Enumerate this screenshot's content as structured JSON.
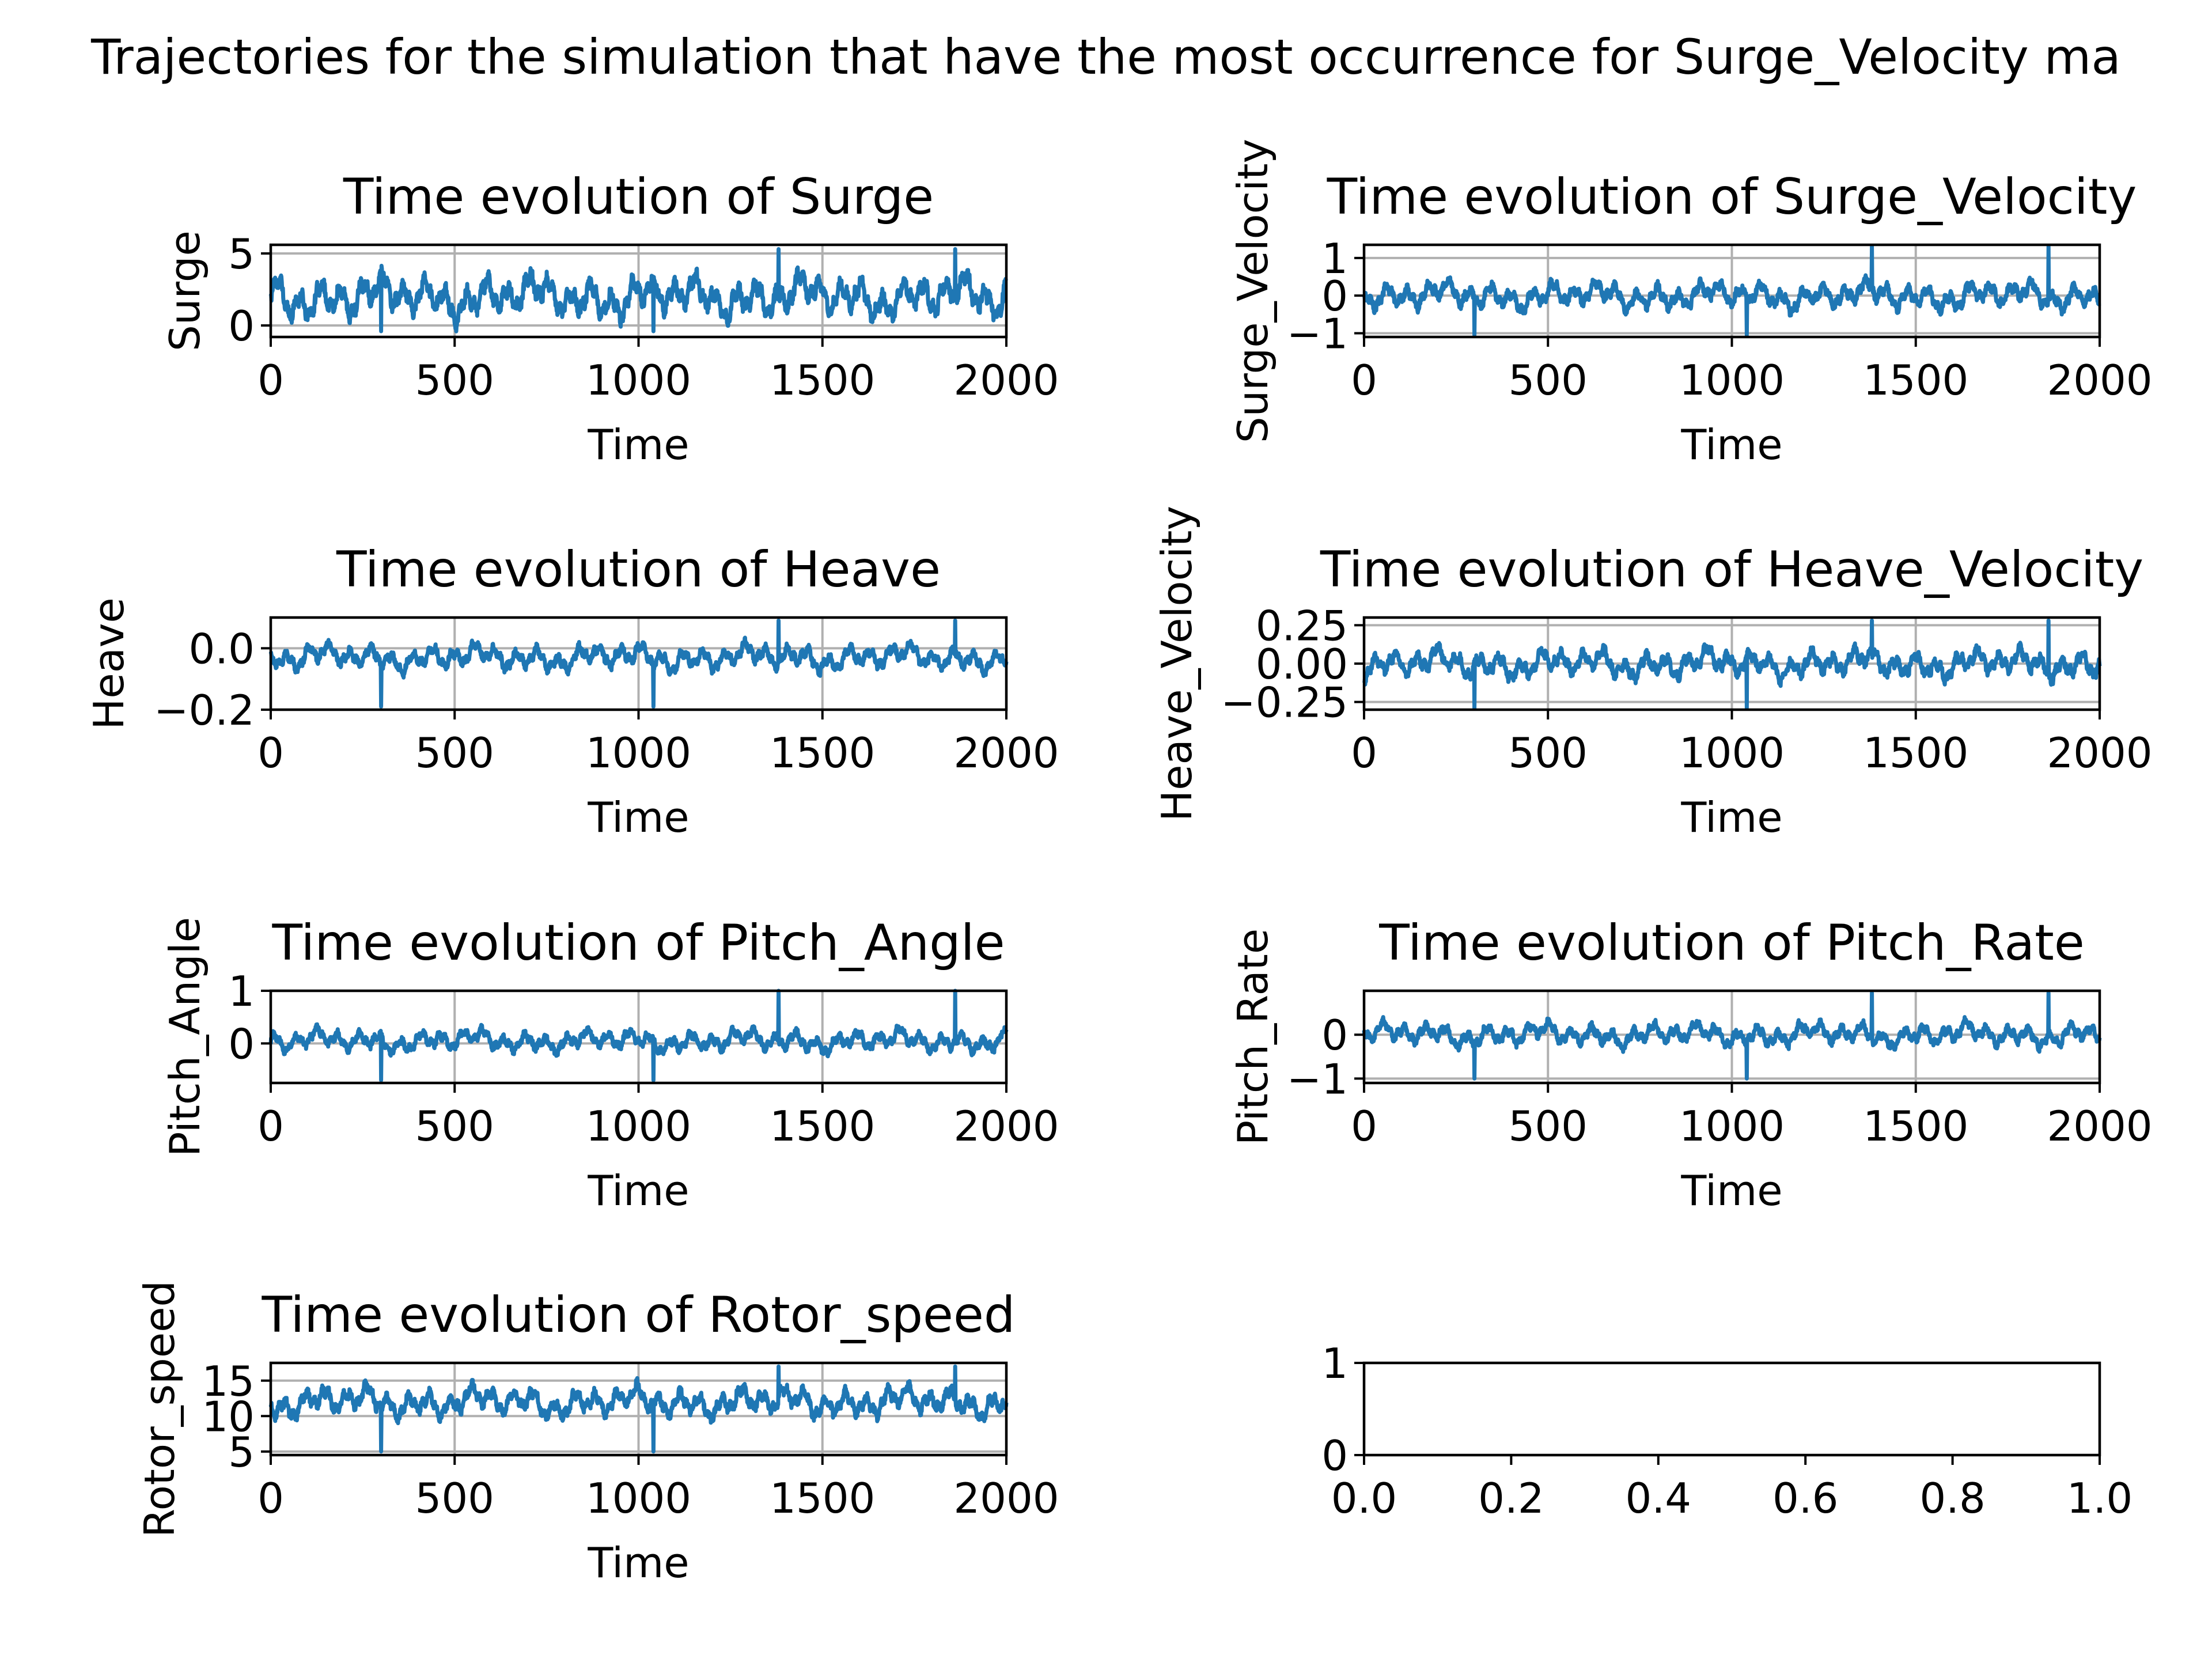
{
  "chart_data": [
    {
      "type": "line",
      "suptitle": "Trajectories for the simulation that have the most occurrence for Surge_Velocity ma",
      "title": "Time evolution of Surge",
      "xlabel": "Time",
      "ylabel": "Surge",
      "xlim": [
        0,
        2000
      ],
      "ylim": [
        -0.8,
        5.6
      ],
      "xticks": [
        "0",
        "500",
        "1000",
        "1500",
        "2000"
      ],
      "yticks": [
        {
          "v": 0,
          "label": "0"
        },
        {
          "v": 5,
          "label": "5"
        }
      ],
      "grid": true,
      "series_color": "#1f77b4",
      "signal": {
        "mean": 2.0,
        "amplitude": 1.4,
        "extremes": [
          -0.4,
          5.3
        ],
        "points": 2000
      }
    },
    {
      "type": "line",
      "title": "Time evolution of Surge_Velocity",
      "xlabel": "Time",
      "ylabel": "Surge_Velocity",
      "xlim": [
        0,
        2000
      ],
      "ylim": [
        -1.1,
        1.35
      ],
      "xticks": [
        "0",
        "500",
        "1000",
        "1500",
        "2000"
      ],
      "yticks": [
        {
          "v": -1,
          "label": "−1"
        },
        {
          "v": 0,
          "label": "0"
        },
        {
          "v": 1,
          "label": "1"
        }
      ],
      "grid": true,
      "series_color": "#1f77b4",
      "signal": {
        "mean": 0.0,
        "amplitude": 0.35,
        "extremes": [
          -1.05,
          1.3
        ],
        "points": 2000
      }
    },
    {
      "type": "line",
      "title": "Time evolution of Heave",
      "xlabel": "Time",
      "ylabel": "Heave",
      "xlim": [
        0,
        2000
      ],
      "ylim": [
        -0.2,
        0.1
      ],
      "xticks": [
        "0",
        "500",
        "1000",
        "1500",
        "2000"
      ],
      "yticks": [
        {
          "v": -0.2,
          "label": "−0.2"
        },
        {
          "v": 0.0,
          "label": "0.0"
        }
      ],
      "grid": true,
      "series_color": "#1f77b4",
      "signal": {
        "mean": -0.03,
        "amplitude": 0.04,
        "extremes": [
          -0.19,
          0.09
        ],
        "points": 2000
      }
    },
    {
      "type": "line",
      "title": "Time evolution of Heave_Velocity",
      "xlabel": "Time",
      "ylabel": "Heave_Velocity",
      "xlim": [
        0,
        2000
      ],
      "ylim": [
        -0.3,
        0.3
      ],
      "xticks": [
        "0",
        "500",
        "1000",
        "1500",
        "2000"
      ],
      "yticks": [
        {
          "v": -0.25,
          "label": "−0.25"
        },
        {
          "v": 0.0,
          "label": "0.00"
        },
        {
          "v": 0.25,
          "label": "0.25"
        }
      ],
      "grid": true,
      "series_color": "#1f77b4",
      "signal": {
        "mean": 0.0,
        "amplitude": 0.09,
        "extremes": [
          -0.29,
          0.28
        ],
        "points": 2000
      }
    },
    {
      "type": "line",
      "title": "Time evolution of Pitch_Angle",
      "xlabel": "Time",
      "ylabel": "Pitch_Angle",
      "xlim": [
        0,
        2000
      ],
      "ylim": [
        -0.75,
        1.0
      ],
      "xticks": [
        "0",
        "500",
        "1000",
        "1500",
        "2000"
      ],
      "yticks": [
        {
          "v": 0,
          "label": "0"
        },
        {
          "v": 1,
          "label": "1"
        }
      ],
      "grid": true,
      "series_color": "#1f77b4",
      "signal": {
        "mean": 0.05,
        "amplitude": 0.2,
        "extremes": [
          -0.7,
          1.0
        ],
        "points": 2000
      }
    },
    {
      "type": "line",
      "title": "Time evolution of Pitch_Rate",
      "xlabel": "Time",
      "ylabel": "Pitch_Rate",
      "xlim": [
        0,
        2000
      ],
      "ylim": [
        -1.1,
        1.0
      ],
      "xticks": [
        "0",
        "500",
        "1000",
        "1500",
        "2000"
      ],
      "yticks": [
        {
          "v": -1,
          "label": "−1"
        },
        {
          "v": 0,
          "label": "0"
        }
      ],
      "grid": true,
      "series_color": "#1f77b4",
      "signal": {
        "mean": 0.0,
        "amplitude": 0.25,
        "extremes": [
          -1.0,
          0.95
        ],
        "points": 2000
      }
    },
    {
      "type": "line",
      "title": "Time evolution of Rotor_speed",
      "xlabel": "Time",
      "ylabel": "Rotor_speed",
      "xlim": [
        0,
        2000
      ],
      "ylim": [
        4.5,
        17.5
      ],
      "xticks": [
        "0",
        "500",
        "1000",
        "1500",
        "2000"
      ],
      "yticks": [
        {
          "v": 5,
          "label": "5"
        },
        {
          "v": 10,
          "label": "10"
        },
        {
          "v": 15,
          "label": "15"
        }
      ],
      "grid": true,
      "series_color": "#1f77b4",
      "signal": {
        "mean": 12.0,
        "amplitude": 2.0,
        "extremes": [
          5.0,
          17.0
        ],
        "points": 2000
      }
    },
    {
      "type": "line",
      "title": "",
      "xlabel": "",
      "ylabel": "",
      "xlim": [
        0.0,
        1.0
      ],
      "ylim": [
        0,
        1
      ],
      "xticks": [
        "0.0",
        "0.2",
        "0.4",
        "0.6",
        "0.8",
        "1.0"
      ],
      "yticks": [
        {
          "v": 0,
          "label": "0"
        },
        {
          "v": 1,
          "label": "1"
        }
      ],
      "grid": false,
      "empty": true
    }
  ]
}
